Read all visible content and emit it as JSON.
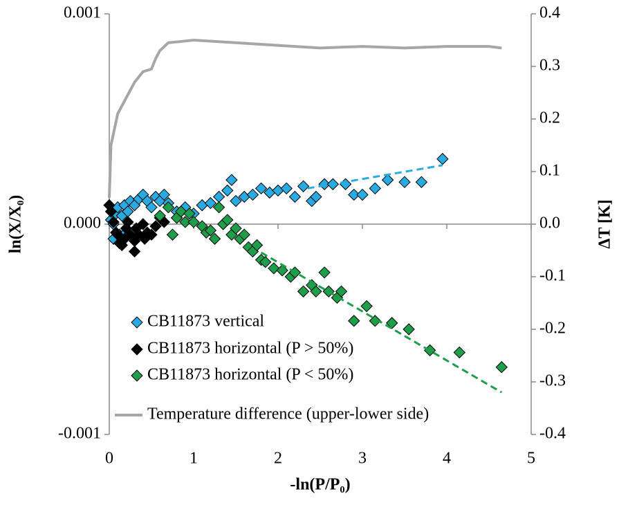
{
  "chart_data": {
    "type": "scatter",
    "xlabel": "-ln(P/P₀)",
    "ylabel": "ln(X/X₀)",
    "y2label": "ΔT [K]",
    "xlim": [
      0,
      5
    ],
    "xticks": [
      0,
      1,
      2,
      3,
      4,
      5
    ],
    "ylim": [
      -0.001,
      0.001
    ],
    "yticks": [
      -0.001,
      {
        "value": 0,
        "label": "0.000"
      },
      0.001
    ],
    "y2lim": [
      -0.4,
      0.4
    ],
    "y2ticks": [
      -0.4,
      -0.3,
      -0.2,
      -0.1,
      {
        "value": 0,
        "label": "0.0"
      },
      0.1,
      0.2,
      0.3,
      0.4
    ],
    "legend": "lower left",
    "series": [
      {
        "name": "CB11873 vertical",
        "color": "#29abe2",
        "mark": "diamond",
        "x": [
          0.02,
          0.05,
          0.08,
          0.1,
          0.15,
          0.18,
          0.22,
          0.25,
          0.3,
          0.35,
          0.4,
          0.45,
          0.5,
          0.55,
          0.6,
          0.65,
          0.7,
          0.8,
          0.9,
          1.0,
          1.1,
          1.2,
          1.3,
          1.4,
          1.45,
          1.5,
          1.6,
          1.7,
          1.8,
          1.9,
          2.0,
          2.1,
          2.2,
          2.3,
          2.4,
          2.45,
          2.55,
          2.65,
          2.8,
          2.9,
          3.0,
          3.15,
          3.3,
          3.5,
          3.7,
          3.95,
          0.05,
          0.12,
          0.2
        ],
        "values": [
          2e-05,
          0.0,
          5e-05,
          8e-05,
          4e-05,
          9e-05,
          6e-05,
          0.00011,
          9e-05,
          0.00012,
          0.00014,
          0.00011,
          8e-05,
          0.00013,
          0.00011,
          0.00014,
          0.0001,
          6e-05,
          8e-05,
          5e-05,
          9e-05,
          0.0001,
          0.00013,
          0.00016,
          0.00021,
          0.00011,
          0.00013,
          0.00014,
          0.00017,
          0.00015,
          0.00016,
          0.00017,
          0.00013,
          0.00018,
          0.00011,
          0.00013,
          0.00019,
          0.00019,
          0.00019,
          0.00014,
          0.00014,
          0.00017,
          0.00021,
          0.0002,
          0.0002,
          0.00031,
          -7e-05,
          -5e-05,
          -4e-05
        ]
      },
      {
        "name": "CB11873 horizontal (P > 50%)",
        "color": "#000000",
        "mark": "diamond",
        "x": [
          0,
          0.02,
          0.05,
          0.1,
          0.12,
          0.15,
          0.18,
          0.2,
          0.25,
          0.3,
          0.32,
          0.35,
          0.4,
          0.45,
          0.5,
          0.55,
          0.6,
          0.65,
          0.3,
          0.08,
          0.22,
          0.42
        ],
        "values": [
          9e-05,
          6e-05,
          1e-05,
          -5e-05,
          -9e-05,
          -0.0001,
          -7e-05,
          -2e-05,
          -5e-05,
          -8e-05,
          -2e-05,
          -5e-05,
          0.0,
          -4e-05,
          -5e-05,
          -1e-05,
          3e-05,
          1e-05,
          -0.00013,
          -4e-05,
          1e-05,
          -7e-05
        ]
      },
      {
        "name": "CB11873 horizontal (P < 50%)",
        "color": "#1e9e4a",
        "mark": "diamond",
        "x": [
          0.6,
          0.7,
          0.75,
          0.8,
          0.85,
          0.9,
          0.95,
          1.0,
          1.1,
          1.15,
          1.2,
          1.25,
          1.3,
          1.35,
          1.4,
          1.45,
          1.5,
          1.55,
          1.6,
          1.65,
          1.7,
          1.75,
          1.8,
          1.85,
          1.95,
          2.05,
          2.15,
          2.2,
          2.3,
          2.4,
          2.45,
          2.55,
          2.6,
          2.7,
          2.75,
          2.9,
          3.05,
          3.15,
          3.35,
          3.55,
          3.8,
          4.15,
          4.65
        ],
        "values": [
          4e-05,
          8e-05,
          -5e-05,
          3e-05,
          6e-05,
          1e-05,
          5e-05,
          1e-05,
          -1e-05,
          -4e-05,
          -3e-05,
          -7e-05,
          8e-05,
          0.0,
          2e-05,
          -5e-05,
          -2e-05,
          -7e-05,
          -5e-05,
          -0.00011,
          -0.00013,
          -0.0001,
          -0.00017,
          -0.00018,
          -0.00021,
          -0.00022,
          -0.00025,
          -0.00023,
          -0.00032,
          -0.00029,
          -0.00032,
          -0.00023,
          -0.00032,
          -0.00035,
          -0.00032,
          -0.00046,
          -0.00039,
          -0.00046,
          -0.00047,
          -0.0005,
          -0.0006,
          -0.00061,
          -0.00068
        ]
      },
      {
        "name": "Temperature difference (upper-lower side)",
        "color": "#a6a6a6",
        "mark": "line",
        "axis": "y2",
        "x": [
          0,
          0.02,
          0.1,
          0.2,
          0.3,
          0.4,
          0.5,
          0.55,
          0.6,
          0.7,
          1.0,
          1.5,
          2.0,
          2.5,
          3.0,
          3.5,
          4.0,
          4.5,
          4.65
        ],
        "values": [
          0.05,
          0.15,
          0.21,
          0.24,
          0.27,
          0.29,
          0.295,
          0.315,
          0.33,
          0.345,
          0.35,
          0.345,
          0.34,
          0.335,
          0.338,
          0.335,
          0.338,
          0.338,
          0.335
        ]
      }
    ],
    "trendlines": [
      {
        "color": "#29abe2",
        "x": [
          2.35,
          3.95
        ],
        "values": [
          0.00017,
          0.00028
        ]
      },
      {
        "color": "#1e9e4a",
        "x": [
          1.8,
          4.65
        ],
        "values": [
          -0.000135,
          -0.0008
        ]
      }
    ]
  }
}
